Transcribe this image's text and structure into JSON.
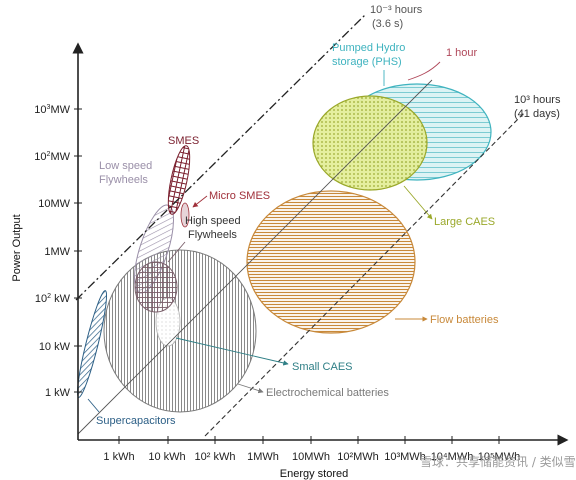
{
  "chart_data": {
    "type": "diagram",
    "xlabel": "Energy stored",
    "ylabel": "Power Output",
    "x_ticks": [
      "1 kWh",
      "10 kWh",
      "10² kWh",
      "1MWh",
      "10MWh",
      "10²MWh",
      "10³MWh",
      "10⁴MWh",
      "10⁵MWh"
    ],
    "y_ticks": [
      "1 kW",
      "10 kW",
      "10² kW",
      "1MW",
      "10MW",
      "10²MW",
      "10³MW"
    ],
    "y_tick_html": [
      [
        "1 kW",
        ""
      ],
      [
        "10 kW",
        ""
      ],
      [
        "10",
        "2",
        " kW"
      ],
      [
        "1MW",
        ""
      ],
      [
        "10MW",
        ""
      ],
      [
        "10",
        "2",
        "MW"
      ],
      [
        "10",
        "3",
        "MW"
      ]
    ],
    "time_lines": [
      {
        "label_line1": "10⁻³ hours",
        "label_line2": "(3.6 s)",
        "style": "dash-dot"
      },
      {
        "label_line1": "1 hour",
        "label_line2": "",
        "style": "solid",
        "color": "#b0485a"
      },
      {
        "label_line1": "10³ hours",
        "label_line2": "(41 days)",
        "style": "dashed"
      }
    ],
    "technologies": [
      {
        "name": "Pumped Hydro storage (PHS)",
        "label_line1": "Pumped Hydro",
        "label_line2": "storage (PHS)",
        "color": "#3fb3bf"
      },
      {
        "name": "Large CAES",
        "label_line1": "Large CAES",
        "color": "#9aa82a"
      },
      {
        "name": "Flow batteries",
        "label_line1": "Flow batteries",
        "color": "#c8893a"
      },
      {
        "name": "SMES",
        "label_line1": "SMES",
        "color": "#7a1f2e"
      },
      {
        "name": "Micro SMES",
        "label_line1": "Micro SMES",
        "color": "#a0303a"
      },
      {
        "name": "Low speed Flywheels",
        "label_line1": "Low speed",
        "label_line2": "Flywheels",
        "color": "#9a8fa8"
      },
      {
        "name": "High speed Flywheels",
        "label_line1": "High speed",
        "label_line2": "Flywheels",
        "color": "#7a5f6a"
      },
      {
        "name": "Small CAES",
        "label_line1": "Small CAES",
        "color": "#2f7f86"
      },
      {
        "name": "Electrochemical batteries",
        "label_line1": "Electrochemical batteries",
        "color": "#7a7a7a"
      },
      {
        "name": "Supercapacitors",
        "label_line1": "Supercapacitors",
        "color": "#2c5f86"
      }
    ]
  },
  "watermark": {
    "text": "雪球：共享储能资讯 / 类似雪汇光伏"
  }
}
